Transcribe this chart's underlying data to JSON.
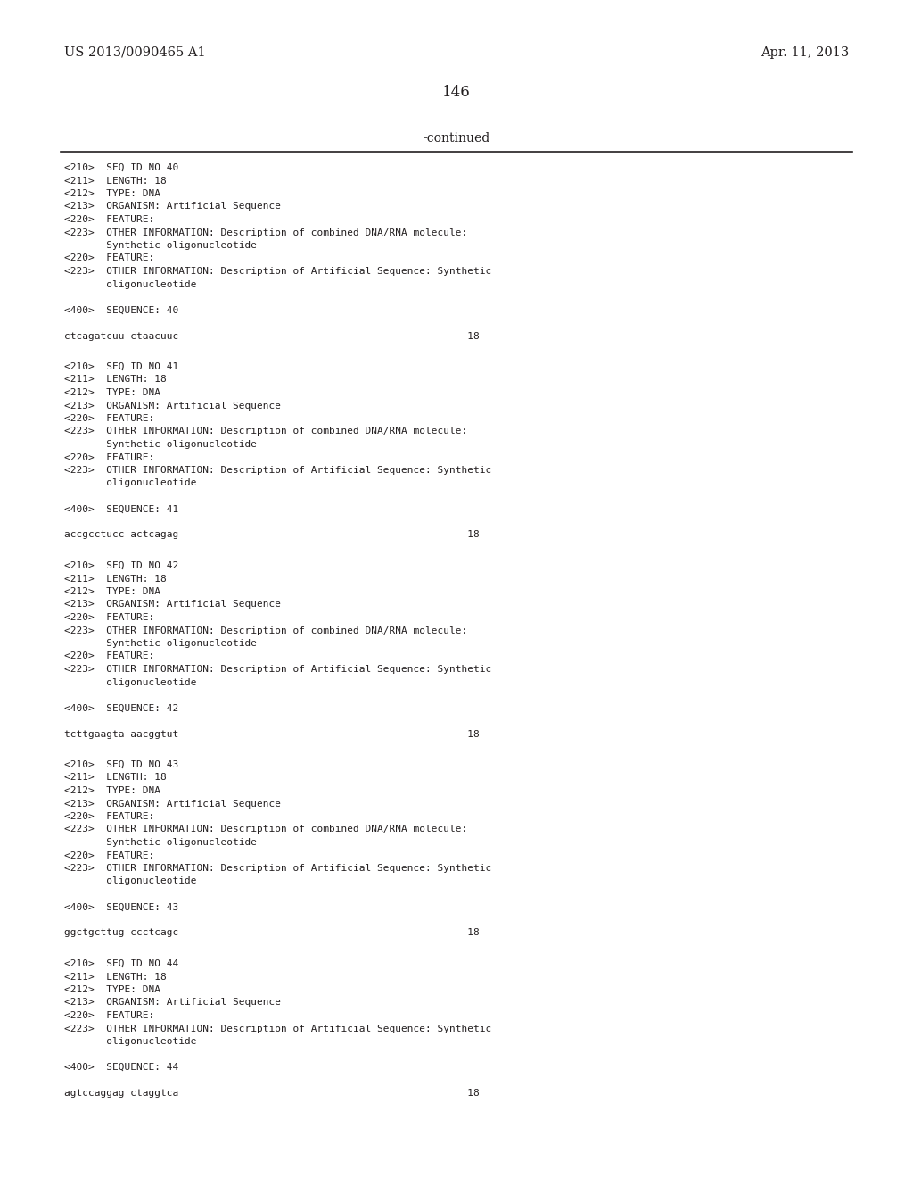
{
  "bg_color": "#ffffff",
  "text_color": "#231f20",
  "header_left": "US 2013/0090465 A1",
  "header_right": "Apr. 11, 2013",
  "page_number": "146",
  "continued_label": "-continued",
  "monospace_font": "DejaVu Sans Mono",
  "serif_font": "DejaVu Serif",
  "blocks": [
    {
      "lines": [
        "<210>  SEQ ID NO 40",
        "<211>  LENGTH: 18",
        "<212>  TYPE: DNA",
        "<213>  ORGANISM: Artificial Sequence",
        "<220>  FEATURE:",
        "<223>  OTHER INFORMATION: Description of combined DNA/RNA molecule:",
        "       Synthetic oligonucleotide",
        "<220>  FEATURE:",
        "<223>  OTHER INFORMATION: Description of Artificial Sequence: Synthetic",
        "       oligonucleotide",
        "",
        "<400>  SEQUENCE: 40",
        "",
        "ctcagatcuu ctaacuuc                                                18"
      ]
    },
    {
      "lines": [
        "<210>  SEQ ID NO 41",
        "<211>  LENGTH: 18",
        "<212>  TYPE: DNA",
        "<213>  ORGANISM: Artificial Sequence",
        "<220>  FEATURE:",
        "<223>  OTHER INFORMATION: Description of combined DNA/RNA molecule:",
        "       Synthetic oligonucleotide",
        "<220>  FEATURE:",
        "<223>  OTHER INFORMATION: Description of Artificial Sequence: Synthetic",
        "       oligonucleotide",
        "",
        "<400>  SEQUENCE: 41",
        "",
        "accgcctucc actcagag                                                18"
      ]
    },
    {
      "lines": [
        "<210>  SEQ ID NO 42",
        "<211>  LENGTH: 18",
        "<212>  TYPE: DNA",
        "<213>  ORGANISM: Artificial Sequence",
        "<220>  FEATURE:",
        "<223>  OTHER INFORMATION: Description of combined DNA/RNA molecule:",
        "       Synthetic oligonucleotide",
        "<220>  FEATURE:",
        "<223>  OTHER INFORMATION: Description of Artificial Sequence: Synthetic",
        "       oligonucleotide",
        "",
        "<400>  SEQUENCE: 42",
        "",
        "tcttgaagta aacggtut                                                18"
      ]
    },
    {
      "lines": [
        "<210>  SEQ ID NO 43",
        "<211>  LENGTH: 18",
        "<212>  TYPE: DNA",
        "<213>  ORGANISM: Artificial Sequence",
        "<220>  FEATURE:",
        "<223>  OTHER INFORMATION: Description of combined DNA/RNA molecule:",
        "       Synthetic oligonucleotide",
        "<220>  FEATURE:",
        "<223>  OTHER INFORMATION: Description of Artificial Sequence: Synthetic",
        "       oligonucleotide",
        "",
        "<400>  SEQUENCE: 43",
        "",
        "ggctgcttug ccctcagc                                                18"
      ]
    },
    {
      "lines": [
        "<210>  SEQ ID NO 44",
        "<211>  LENGTH: 18",
        "<212>  TYPE: DNA",
        "<213>  ORGANISM: Artificial Sequence",
        "<220>  FEATURE:",
        "<223>  OTHER INFORMATION: Description of Artificial Sequence: Synthetic",
        "       oligonucleotide",
        "",
        "<400>  SEQUENCE: 44",
        "",
        "agtccaggag ctaggtca                                                18"
      ]
    }
  ]
}
